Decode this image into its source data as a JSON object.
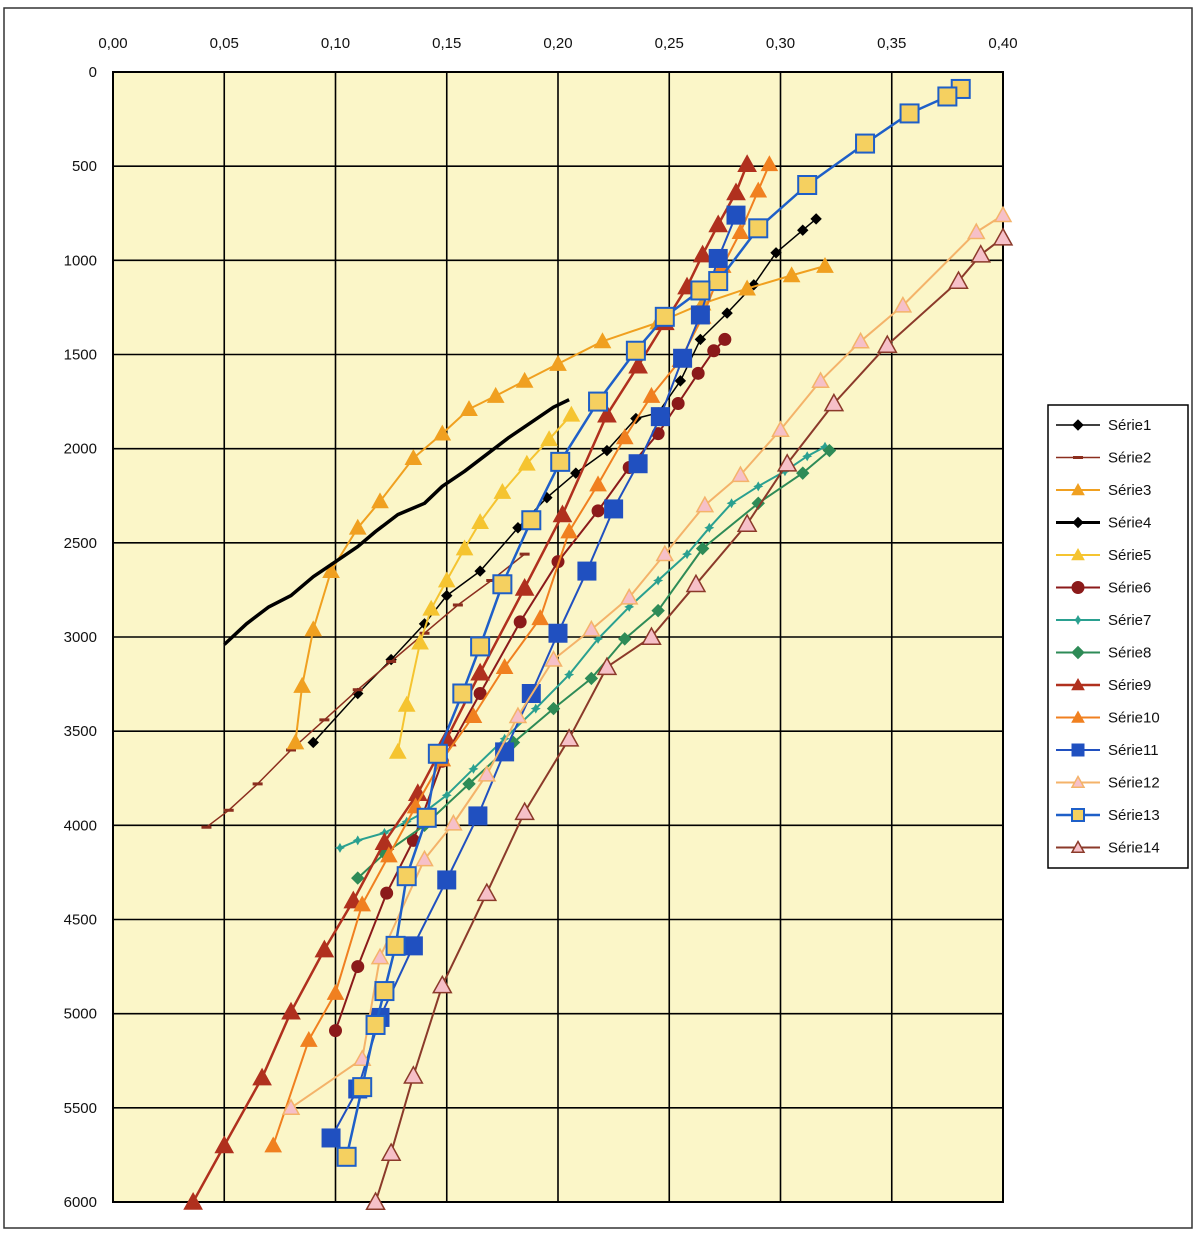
{
  "chart_data": {
    "type": "line",
    "title": "",
    "xlabel": "",
    "ylabel": "",
    "xlim": [
      0,
      0.4
    ],
    "ylim": [
      6000,
      0
    ],
    "x_axis_position": "top",
    "y_reversed": true,
    "grid": true,
    "legend_position": "right",
    "plot_background": "#fbf6c8",
    "x_ticks": [
      0,
      0.05,
      0.1,
      0.15,
      0.2,
      0.25,
      0.3,
      0.35,
      0.4
    ],
    "x_tick_labels": [
      "0,00",
      "0,05",
      "0,10",
      "0,15",
      "0,20",
      "0,25",
      "0,30",
      "0,35",
      "0,40"
    ],
    "y_ticks": [
      0,
      500,
      1000,
      1500,
      2000,
      2500,
      3000,
      3500,
      4000,
      4500,
      5000,
      5500,
      6000
    ],
    "y_tick_labels": [
      "0",
      "500",
      "1000",
      "1500",
      "2000",
      "2500",
      "3000",
      "3500",
      "4000",
      "4500",
      "5000",
      "5500",
      "6000"
    ],
    "series": [
      {
        "name": "Série1",
        "color": "#000000",
        "marker": "diamond",
        "marker_size": 5,
        "line_width": 1.5,
        "x": [
          0.316,
          0.31,
          0.298,
          0.288,
          0.276,
          0.264,
          0.255,
          0.245,
          0.235,
          0.222,
          0.208,
          0.195,
          0.182,
          0.165,
          0.15,
          0.14,
          0.125,
          0.11,
          0.09
        ],
        "y": [
          780,
          840,
          960,
          1130,
          1280,
          1420,
          1640,
          1810,
          1840,
          2010,
          2130,
          2260,
          2420,
          2650,
          2780,
          2930,
          3120,
          3300,
          3560
        ]
      },
      {
        "name": "Série2",
        "color": "#8b2e1e",
        "marker": "dash",
        "marker_size": 5,
        "line_width": 1.5,
        "x": [
          0.185,
          0.17,
          0.155,
          0.14,
          0.125,
          0.11,
          0.095,
          0.08,
          0.065,
          0.052,
          0.042
        ],
        "y": [
          2560,
          2700,
          2830,
          2980,
          3130,
          3280,
          3440,
          3600,
          3780,
          3920,
          4010
        ]
      },
      {
        "name": "Série3",
        "color": "#f0a020",
        "marker": "triangle",
        "marker_size": 8,
        "line_width": 2,
        "x": [
          0.32,
          0.305,
          0.285,
          0.265,
          0.245,
          0.22,
          0.2,
          0.185,
          0.172,
          0.16,
          0.148,
          0.135,
          0.12,
          0.11,
          0.098,
          0.09,
          0.085,
          0.082
        ],
        "y": [
          1030,
          1080,
          1150,
          1230,
          1330,
          1430,
          1550,
          1640,
          1720,
          1790,
          1920,
          2050,
          2280,
          2420,
          2650,
          2960,
          3260,
          3560
        ]
      },
      {
        "name": "Série4",
        "color": "#000000",
        "marker": "none",
        "marker_size": 0,
        "line_width": 3.5,
        "x": [
          0.205,
          0.198,
          0.188,
          0.178,
          0.168,
          0.158,
          0.148,
          0.14,
          0.128,
          0.118,
          0.11,
          0.1,
          0.09,
          0.08,
          0.07,
          0.06,
          0.05
        ],
        "y": [
          1740,
          1780,
          1860,
          1940,
          2030,
          2120,
          2200,
          2290,
          2350,
          2440,
          2520,
          2600,
          2680,
          2780,
          2840,
          2930,
          3040
        ]
      },
      {
        "name": "Série5",
        "color": "#f5c430",
        "marker": "triangle",
        "marker_size": 8,
        "line_width": 2,
        "x": [
          0.206,
          0.196,
          0.186,
          0.175,
          0.165,
          0.158,
          0.15,
          0.143,
          0.138,
          0.132,
          0.128
        ],
        "y": [
          1820,
          1950,
          2080,
          2230,
          2390,
          2530,
          2700,
          2850,
          3030,
          3360,
          3610
        ]
      },
      {
        "name": "Série6",
        "color": "#8b1a1a",
        "marker": "circle",
        "marker_size": 6,
        "line_width": 2,
        "x": [
          0.275,
          0.27,
          0.263,
          0.254,
          0.245,
          0.232,
          0.218,
          0.2,
          0.183,
          0.165,
          0.148,
          0.135,
          0.123,
          0.11,
          0.1
        ],
        "y": [
          1420,
          1480,
          1600,
          1760,
          1920,
          2100,
          2330,
          2600,
          2920,
          3300,
          3660,
          4080,
          4360,
          4750,
          5090
        ]
      },
      {
        "name": "Série7",
        "color": "#2aa090",
        "marker": "star",
        "marker_size": 5,
        "line_width": 2,
        "x": [
          0.32,
          0.312,
          0.302,
          0.29,
          0.278,
          0.268,
          0.258,
          0.245,
          0.232,
          0.218,
          0.205,
          0.19,
          0.176,
          0.162,
          0.15,
          0.14,
          0.132,
          0.122,
          0.11,
          0.102
        ],
        "y": [
          1990,
          2040,
          2120,
          2200,
          2290,
          2420,
          2560,
          2700,
          2840,
          3010,
          3200,
          3380,
          3540,
          3700,
          3840,
          3930,
          3980,
          4040,
          4080,
          4120
        ]
      },
      {
        "name": "Série8",
        "color": "#2e8b57",
        "marker": "diamond",
        "marker_size": 6,
        "line_width": 2,
        "x": [
          0.322,
          0.31,
          0.29,
          0.265,
          0.245,
          0.23,
          0.215,
          0.198,
          0.18,
          0.16,
          0.14,
          0.122,
          0.11
        ],
        "y": [
          2010,
          2130,
          2290,
          2530,
          2860,
          3010,
          3220,
          3380,
          3560,
          3780,
          4000,
          4150,
          4280
        ]
      },
      {
        "name": "Série9",
        "color": "#b0301e",
        "marker": "triangle",
        "marker_size": 9,
        "line_width": 2.5,
        "x": [
          0.285,
          0.28,
          0.272,
          0.265,
          0.258,
          0.248,
          0.236,
          0.222,
          0.202,
          0.185,
          0.165,
          0.15,
          0.137,
          0.122,
          0.108,
          0.095,
          0.08,
          0.067,
          0.05,
          0.036
        ],
        "y": [
          490,
          640,
          810,
          970,
          1140,
          1330,
          1560,
          1820,
          2350,
          2740,
          3190,
          3540,
          3830,
          4090,
          4400,
          4660,
          4990,
          5340,
          5700,
          6000
        ]
      },
      {
        "name": "Série10",
        "color": "#f08020",
        "marker": "triangle",
        "marker_size": 8,
        "line_width": 2,
        "x": [
          0.295,
          0.29,
          0.282,
          0.274,
          0.265,
          0.255,
          0.242,
          0.23,
          0.218,
          0.205,
          0.192,
          0.176,
          0.162,
          0.148,
          0.136,
          0.124,
          0.112,
          0.1,
          0.088,
          0.072
        ],
        "y": [
          490,
          630,
          850,
          1030,
          1300,
          1530,
          1720,
          1940,
          2190,
          2440,
          2900,
          3160,
          3420,
          3650,
          3900,
          4160,
          4420,
          4890,
          5140,
          5700
        ]
      },
      {
        "name": "Série11",
        "color": "#2050c0",
        "marker": "square",
        "marker_size": 9,
        "line_width": 2,
        "x": [
          0.28,
          0.272,
          0.264,
          0.256,
          0.246,
          0.236,
          0.225,
          0.213,
          0.2,
          0.188,
          0.176,
          0.164,
          0.15,
          0.135,
          0.12,
          0.11,
          0.098
        ],
        "y": [
          760,
          990,
          1290,
          1520,
          1830,
          2080,
          2320,
          2650,
          2980,
          3300,
          3610,
          3950,
          4290,
          4640,
          5020,
          5400,
          5660
        ]
      },
      {
        "name": "Série12",
        "color": "#f4b36a",
        "marker": "triangle_open",
        "marker_size": 8,
        "line_width": 2,
        "x": [
          0.4,
          0.388,
          0.355,
          0.336,
          0.318,
          0.3,
          0.282,
          0.266,
          0.248,
          0.232,
          0.215,
          0.198,
          0.182,
          0.168,
          0.153,
          0.14,
          0.12,
          0.112,
          0.08
        ],
        "y": [
          760,
          850,
          1240,
          1430,
          1640,
          1900,
          2140,
          2300,
          2560,
          2790,
          2960,
          3120,
          3420,
          3730,
          3990,
          4180,
          4700,
          5240,
          5500
        ]
      },
      {
        "name": "Série13",
        "color": "#1e5fc8",
        "marker": "square_open",
        "marker_size": 9,
        "line_width": 2.5,
        "x": [
          0.381,
          0.375,
          0.358,
          0.338,
          0.312,
          0.29,
          0.272,
          0.264,
          0.248,
          0.235,
          0.218,
          0.201,
          0.188,
          0.175,
          0.165,
          0.157,
          0.146,
          0.141,
          0.132,
          0.127,
          0.122,
          0.118,
          0.112,
          0.105
        ],
        "y": [
          90,
          130,
          220,
          380,
          600,
          830,
          1110,
          1160,
          1300,
          1480,
          1750,
          2070,
          2380,
          2720,
          3050,
          3300,
          3620,
          3960,
          4270,
          4640,
          4880,
          5060,
          5390,
          5760
        ]
      },
      {
        "name": "Série14",
        "color": "#8b3a2a",
        "marker": "triangle_open",
        "marker_size": 9,
        "line_width": 2,
        "x": [
          0.4,
          0.39,
          0.38,
          0.348,
          0.324,
          0.303,
          0.285,
          0.262,
          0.242,
          0.222,
          0.205,
          0.185,
          0.168,
          0.148,
          0.135,
          0.125,
          0.118
        ],
        "y": [
          880,
          970,
          1110,
          1450,
          1760,
          2080,
          2400,
          2720,
          3000,
          3160,
          3540,
          3930,
          4360,
          4850,
          5330,
          5740,
          6000
        ]
      }
    ]
  }
}
